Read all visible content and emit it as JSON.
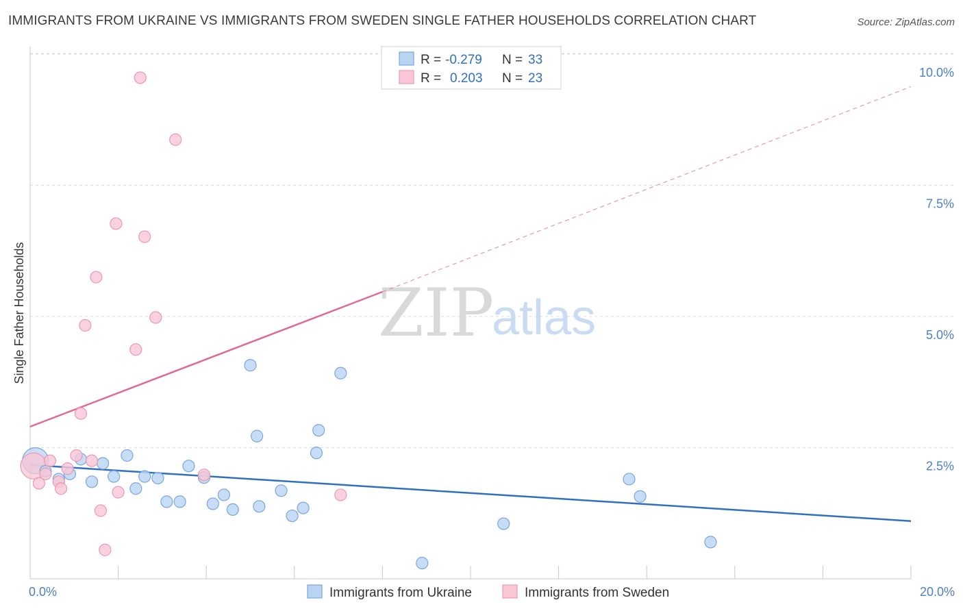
{
  "title": "IMMIGRANTS FROM UKRAINE VS IMMIGRANTS FROM SWEDEN SINGLE FATHER HOUSEHOLDS CORRELATION CHART",
  "source": "Source: ZipAtlas.com",
  "watermark": {
    "zip": "ZIP",
    "atlas": "atlas"
  },
  "colors": {
    "ukraine_fill": "#b9d3f3",
    "ukraine_stroke": "#7aa6df",
    "ukraine_line": "#2f6fc4",
    "sweden_fill": "#f9c6d6",
    "sweden_stroke": "#e99ab3",
    "sweden_line": "#e06a90",
    "grid": "#dcdcdc",
    "tick_label": "#4a7fc8"
  },
  "legend": {
    "rows": [
      {
        "r_label": "R =",
        "r_value": "-0.279",
        "n_label": "N =",
        "n_value": "33"
      },
      {
        "r_label": "R =",
        "r_value": "0.203",
        "n_label": "N =",
        "n_value": "23"
      }
    ]
  },
  "chart_data": {
    "type": "scatter",
    "title": "IMMIGRANTS FROM UKRAINE VS IMMIGRANTS FROM SWEDEN SINGLE FATHER HOUSEHOLDS CORRELATION CHART",
    "xlabel": "",
    "ylabel": "Single Father Households",
    "xlim": [
      0,
      20
    ],
    "ylim": [
      0,
      10.5
    ],
    "x_tick_labels": [
      {
        "value": 0,
        "label": "0.0%"
      },
      {
        "value": 20,
        "label": "20.0%"
      }
    ],
    "y_tick_labels": [
      {
        "value": 2.5,
        "label": "2.5%"
      },
      {
        "value": 5.0,
        "label": "5.0%"
      },
      {
        "value": 7.5,
        "label": "7.5%"
      },
      {
        "value": 10.0,
        "label": "10.0%"
      }
    ],
    "x_minor_ticks": [
      2,
      4,
      6,
      8,
      10,
      12,
      14,
      16,
      18,
      20
    ],
    "series": [
      {
        "name": "Immigrants from Ukraine",
        "r": -0.279,
        "n": 33,
        "points": [
          {
            "x": 0.12,
            "y": 2.25,
            "big": true
          },
          {
            "x": 0.35,
            "y": 2.05
          },
          {
            "x": 0.65,
            "y": 1.9
          },
          {
            "x": 0.9,
            "y": 2.0
          },
          {
            "x": 1.15,
            "y": 2.28
          },
          {
            "x": 1.4,
            "y": 1.85
          },
          {
            "x": 1.65,
            "y": 2.2
          },
          {
            "x": 1.9,
            "y": 1.95
          },
          {
            "x": 2.2,
            "y": 2.35
          },
          {
            "x": 2.4,
            "y": 1.72
          },
          {
            "x": 2.6,
            "y": 1.95
          },
          {
            "x": 2.9,
            "y": 1.92
          },
          {
            "x": 3.1,
            "y": 1.47
          },
          {
            "x": 3.4,
            "y": 1.47
          },
          {
            "x": 3.6,
            "y": 2.15
          },
          {
            "x": 3.95,
            "y": 1.93
          },
          {
            "x": 4.15,
            "y": 1.43
          },
          {
            "x": 4.4,
            "y": 1.6
          },
          {
            "x": 4.6,
            "y": 1.32
          },
          {
            "x": 5.0,
            "y": 4.07
          },
          {
            "x": 5.15,
            "y": 2.72
          },
          {
            "x": 5.2,
            "y": 1.38
          },
          {
            "x": 5.7,
            "y": 1.68
          },
          {
            "x": 5.95,
            "y": 1.2
          },
          {
            "x": 6.2,
            "y": 1.35
          },
          {
            "x": 6.5,
            "y": 2.4
          },
          {
            "x": 6.55,
            "y": 2.83
          },
          {
            "x": 7.05,
            "y": 3.92
          },
          {
            "x": 8.9,
            "y": 0.3
          },
          {
            "x": 10.75,
            "y": 1.05
          },
          {
            "x": 13.6,
            "y": 1.9
          },
          {
            "x": 13.85,
            "y": 1.57
          },
          {
            "x": 15.45,
            "y": 0.7
          }
        ],
        "trend": {
          "x0": 0,
          "y0": 2.17,
          "x1": 20,
          "y1": 1.1
        }
      },
      {
        "name": "Immigrants from Sweden",
        "r": 0.203,
        "n": 23,
        "points": [
          {
            "x": 0.08,
            "y": 2.15,
            "big": true
          },
          {
            "x": 0.2,
            "y": 1.82
          },
          {
            "x": 0.35,
            "y": 2.0
          },
          {
            "x": 0.45,
            "y": 2.25
          },
          {
            "x": 0.65,
            "y": 1.85
          },
          {
            "x": 0.7,
            "y": 1.72
          },
          {
            "x": 0.85,
            "y": 2.1
          },
          {
            "x": 1.05,
            "y": 2.35
          },
          {
            "x": 1.15,
            "y": 3.15
          },
          {
            "x": 1.25,
            "y": 4.83
          },
          {
            "x": 1.4,
            "y": 2.25
          },
          {
            "x": 1.5,
            "y": 5.75
          },
          {
            "x": 1.6,
            "y": 1.3
          },
          {
            "x": 1.7,
            "y": 0.55
          },
          {
            "x": 1.95,
            "y": 6.77
          },
          {
            "x": 2.0,
            "y": 1.65
          },
          {
            "x": 2.4,
            "y": 4.37
          },
          {
            "x": 2.5,
            "y": 9.55
          },
          {
            "x": 2.6,
            "y": 6.52
          },
          {
            "x": 2.85,
            "y": 4.98
          },
          {
            "x": 3.3,
            "y": 8.37
          },
          {
            "x": 3.95,
            "y": 1.98
          },
          {
            "x": 7.05,
            "y": 1.6
          }
        ],
        "trend": {
          "x0": 0,
          "y0": 2.9,
          "x1": 8.0,
          "y1": 5.47
        },
        "trend_extension": {
          "x0": 8.0,
          "y0": 5.47,
          "x1": 20,
          "y1": 9.38
        }
      }
    ]
  },
  "bottom_legend": [
    {
      "label": "Immigrants from Ukraine"
    },
    {
      "label": "Immigrants from Sweden"
    }
  ]
}
